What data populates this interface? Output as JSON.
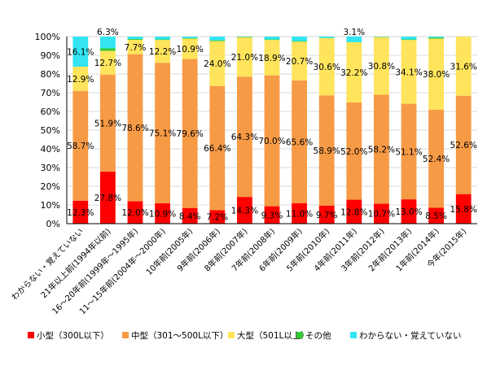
{
  "chart_data": {
    "type": "bar",
    "stacked": true,
    "percent_axis": true,
    "title": "",
    "xlabel": "",
    "ylabel": "",
    "ylim": [
      0,
      100
    ],
    "yticks": [
      "0%",
      "10%",
      "20%",
      "30%",
      "40%",
      "50%",
      "60%",
      "70%",
      "80%",
      "90%",
      "100%"
    ],
    "categories": [
      "わからない・覚えていない",
      "21年以上前(1994年以前)",
      "16～20年前(1999年～1995年)",
      "11～15年前(2004年～2000年)",
      "10年前(2005年)",
      "9年前(2006年)",
      "8年前(2007年)",
      "7年前(2008年)",
      "6年前(2009年)",
      "5年前(2010年)",
      "4年前(2011年)",
      "3年前(2012年)",
      "2年前(2013年)",
      "1年前(2014年)",
      "今年(2015年)"
    ],
    "series": [
      {
        "name": "小型（300L以下）",
        "color": "#ff0000",
        "values": [
          12.3,
          27.8,
          12.0,
          10.9,
          8.4,
          7.2,
          14.3,
          9.3,
          11.0,
          9.7,
          12.8,
          10.7,
          13.0,
          8.5,
          15.8
        ],
        "labels": [
          "12.3%",
          "27.8%",
          "12.0%",
          "10.9%",
          "8.4%",
          "7.2%",
          "14.3%",
          "9.3%",
          "11.0%",
          "9.7%",
          "12.8%",
          "10.7%",
          "13.0%",
          "8.5%",
          "15.8%"
        ]
      },
      {
        "name": "中型（301～500L以下）",
        "color": "#f79a45",
        "values": [
          58.7,
          51.9,
          78.6,
          75.1,
          79.6,
          66.4,
          64.3,
          70.0,
          65.6,
          58.9,
          52.0,
          58.2,
          51.1,
          52.4,
          52.6
        ],
        "labels": [
          "58.7%",
          "51.9%",
          "78.6%",
          "75.1%",
          "79.6%",
          "66.4%",
          "64.3%",
          "70.0%",
          "65.6%",
          "58.9%",
          "52.0%",
          "58.2%",
          "51.1%",
          "52.4%",
          "52.6%"
        ]
      },
      {
        "name": "大型（501L以上）",
        "color": "#ffe45c",
        "values": [
          12.9,
          12.7,
          7.7,
          12.2,
          10.9,
          24.0,
          21.0,
          18.9,
          20.7,
          30.6,
          32.2,
          30.8,
          34.1,
          38.0,
          31.6
        ],
        "labels": [
          "12.9%",
          "12.7%",
          "7.7%",
          "12.2%",
          "10.9%",
          "24.0%",
          "21.0%",
          "18.9%",
          "20.7%",
          "30.6%",
          "32.2%",
          "30.8%",
          "34.1%",
          "38.0%",
          "31.6%"
        ]
      },
      {
        "name": "その他",
        "color": "#33cc33",
        "values": [
          0.0,
          1.3,
          0.4,
          0.3,
          0.3,
          0.4,
          0.3,
          0.3,
          0.3,
          0.1,
          0.0,
          0.2,
          0.3,
          0.6,
          0.0
        ],
        "labels": [
          "",
          "",
          "",
          "",
          "",
          "",
          "",
          "",
          "",
          "",
          "",
          "",
          "",
          "",
          ""
        ]
      },
      {
        "name": "わからない・覚えていない",
        "color": "#33e5f2",
        "values": [
          16.1,
          6.3,
          1.3,
          1.5,
          0.8,
          2.0,
          0.1,
          1.5,
          2.4,
          0.7,
          3.1,
          0.1,
          1.5,
          0.5,
          0.0
        ],
        "labels": [
          "16.1%",
          "6.3%",
          "",
          "",
          "",
          "",
          "",
          "",
          "",
          "",
          "3.1%",
          "",
          "",
          "",
          ""
        ]
      }
    ],
    "legend_position": "bottom"
  }
}
